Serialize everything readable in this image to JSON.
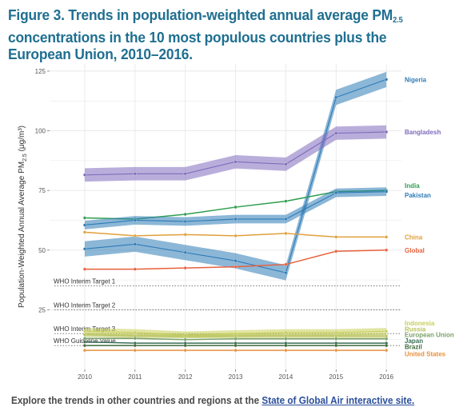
{
  "figure": {
    "title_part1": "Figure 3. Trends in population-weighted annual average PM",
    "title_sub": "2.5",
    "title_part2": " concentrations in the 10 most populous countries plus the European Union, 2010–2016."
  },
  "footer": {
    "text": "Explore the trends in other countries and regions at the ",
    "link_text": "State of Global Air interactive site."
  },
  "chart_data": {
    "type": "line",
    "ylabel_main": "Population-Weighted Annual Average  PM",
    "ylabel_sub": "2.5",
    "ylabel_unit": " (μg/m³)",
    "xlabel": "",
    "ylim": [
      0,
      128
    ],
    "xlim": [
      2009.3,
      2016.3
    ],
    "y_ticks": [
      25,
      50,
      75,
      100,
      125
    ],
    "x_ticks": [
      2010,
      2011,
      2012,
      2013,
      2014,
      2015,
      2016
    ],
    "grid": true,
    "legend": "direct labels at right end of lines",
    "reference_lines": [
      {
        "label": "WHO Interim Target 1",
        "value": 35
      },
      {
        "label": "WHO Interim Target 2",
        "value": 25
      },
      {
        "label": "WHO Interim Target 3",
        "value": 15
      },
      {
        "label": "WHO Guideline Value",
        "value": 10
      }
    ],
    "x": [
      2010,
      2011,
      2012,
      2013,
      2014,
      2015,
      2016
    ],
    "series": [
      {
        "name": "Nigeria",
        "color": "#2e7bb6",
        "band": 3.2,
        "values": [
          50.5,
          52.5,
          49,
          45.5,
          40.5,
          114,
          121.5
        ]
      },
      {
        "name": "Bangladesh",
        "color": "#7f6bbd",
        "band": 2.8,
        "values": [
          81.5,
          82,
          82,
          87,
          86,
          99,
          99.5
        ]
      },
      {
        "name": "India",
        "color": "#2e9e4f",
        "band": 0,
        "values": [
          63.5,
          63,
          65,
          68,
          70.5,
          74.5,
          75
        ]
      },
      {
        "name": "Pakistan",
        "color": "#2e7bb6",
        "band": 1.8,
        "values": [
          60.5,
          62.5,
          62,
          63,
          63,
          74,
          74.5
        ]
      },
      {
        "name": "China",
        "color": "#e0a03c",
        "band": 0,
        "values": [
          57.5,
          56,
          56.5,
          56,
          57,
          55.5,
          55.5
        ]
      },
      {
        "name": "Global",
        "color": "#e8603c",
        "band": 0,
        "values": [
          42,
          42,
          42.5,
          43,
          44,
          49.5,
          50
        ]
      },
      {
        "name": "Indonesia",
        "color": "#c8cf5a",
        "band": 1.4,
        "values": [
          16,
          15.5,
          14.5,
          15,
          15.5,
          15.5,
          16
        ]
      },
      {
        "name": "Russia",
        "color": "#b7c25a",
        "band": 0.9,
        "values": [
          14.5,
          14,
          14,
          14,
          14,
          14,
          14
        ]
      },
      {
        "name": "European Union",
        "color": "#7aa06a",
        "band": 0,
        "values": [
          13,
          13,
          12.5,
          12.8,
          12.8,
          12.8,
          12.8
        ]
      },
      {
        "name": "Japan",
        "color": "#3a6e55",
        "band": 0,
        "values": [
          11.5,
          11,
          11,
          11,
          11,
          11,
          11
        ]
      },
      {
        "name": "Brazil",
        "color": "#3f6b3a",
        "band": 0,
        "values": [
          10,
          10,
          10,
          10,
          10,
          10,
          10
        ]
      },
      {
        "name": "United States",
        "color": "#e8903c",
        "band": 0,
        "values": [
          8,
          8,
          8,
          8,
          8,
          8,
          8
        ]
      }
    ],
    "label_positions_y": {
      "Nigeria": 121.5,
      "Bangladesh": 99.5,
      "India": 77,
      "Pakistan": 73,
      "China": 55.5,
      "Global": 50,
      "Indonesia": 19.5,
      "Russia": 17,
      "European Union": 14.5,
      "Japan": 12,
      "Brazil": 9.5,
      "United States": 6.5
    }
  }
}
